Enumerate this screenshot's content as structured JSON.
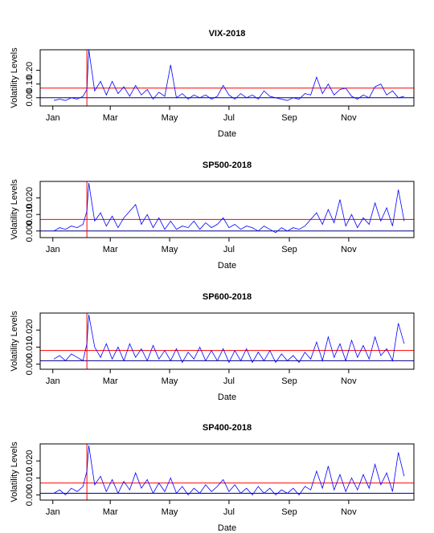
{
  "chart_data": [
    {
      "type": "line",
      "title": "VIX-2018",
      "x_label": "Date",
      "y_label": "Volatility Levels",
      "color": "#0000ff",
      "x": [
        2,
        8,
        14,
        20,
        26,
        32,
        36,
        38,
        44,
        50,
        56,
        62,
        68,
        74,
        80,
        86,
        92,
        98,
        104,
        110,
        116,
        122,
        128,
        134,
        140,
        146,
        152,
        158,
        164,
        170,
        176,
        182,
        188,
        194,
        200,
        206,
        212,
        218,
        224,
        230,
        236,
        242,
        248,
        254,
        260,
        266,
        272,
        278,
        284,
        290,
        296,
        302,
        308,
        314,
        320,
        326,
        332,
        338,
        344,
        350,
        356,
        362
      ],
      "values": [
        -0.02,
        -0.01,
        -0.02,
        0.0,
        -0.01,
        0.01,
        0.06,
        0.35,
        0.05,
        0.12,
        0.02,
        0.12,
        0.03,
        0.08,
        0.01,
        0.09,
        0.02,
        0.06,
        -0.01,
        0.04,
        0.01,
        0.24,
        0.0,
        0.03,
        -0.01,
        0.02,
        0.0,
        0.02,
        -0.01,
        0.01,
        0.09,
        0.02,
        -0.01,
        0.03,
        0.0,
        0.02,
        -0.01,
        0.05,
        0.01,
        0.0,
        -0.01,
        -0.02,
        0.0,
        -0.01,
        0.03,
        0.02,
        0.15,
        0.03,
        0.1,
        0.02,
        0.06,
        0.07,
        0.01,
        -0.01,
        0.02,
        0.0,
        0.08,
        0.1,
        0.02,
        0.05,
        0.0,
        0.01
      ],
      "xlim": [
        -12,
        372
      ],
      "ylim": [
        -0.06,
        0.35
      ],
      "xticks": [
        {
          "value": 1,
          "label": "Jan"
        },
        {
          "value": 60,
          "label": "Mar"
        },
        {
          "value": 121,
          "label": "May"
        },
        {
          "value": 182,
          "label": "Jul"
        },
        {
          "value": 244,
          "label": "Sep"
        },
        {
          "value": 305,
          "label": "Nov"
        }
      ],
      "yticks": [
        {
          "value": 0,
          "label": "0.00"
        },
        {
          "value": 0.1,
          "label": "0.10"
        },
        {
          "value": 0.2,
          "label": "0.20"
        }
      ],
      "hlines": [
        {
          "value": 0.07,
          "color": "#ff0000"
        },
        {
          "value": 0.0,
          "color": "#00008b"
        }
      ],
      "vlines": [
        {
          "value": 36,
          "color": "#ff0000"
        }
      ]
    },
    {
      "type": "line",
      "title": "SP500-2018",
      "x_label": "Date",
      "y_label": "Volatility Levels",
      "color": "#0000ff",
      "x": [
        2,
        8,
        14,
        20,
        26,
        32,
        36,
        38,
        44,
        50,
        56,
        62,
        68,
        74,
        80,
        86,
        92,
        98,
        104,
        110,
        116,
        122,
        128,
        134,
        140,
        146,
        152,
        158,
        164,
        170,
        176,
        182,
        188,
        194,
        200,
        206,
        212,
        218,
        224,
        230,
        236,
        242,
        248,
        254,
        260,
        266,
        272,
        278,
        284,
        290,
        296,
        302,
        308,
        314,
        320,
        326,
        332,
        338,
        344,
        350,
        356,
        362
      ],
      "values": [
        0.0,
        0.002,
        0.001,
        0.003,
        0.002,
        0.004,
        0.012,
        0.029,
        0.006,
        0.011,
        0.003,
        0.009,
        0.002,
        0.008,
        0.012,
        0.016,
        0.004,
        0.01,
        0.002,
        0.008,
        0.001,
        0.006,
        0.001,
        0.003,
        0.002,
        0.006,
        0.001,
        0.005,
        0.002,
        0.004,
        0.008,
        0.002,
        0.004,
        0.001,
        0.003,
        0.002,
        0.0,
        0.003,
        0.001,
        -0.001,
        0.002,
        0.0,
        0.002,
        0.001,
        0.003,
        0.007,
        0.011,
        0.004,
        0.013,
        0.005,
        0.019,
        0.003,
        0.01,
        0.002,
        0.008,
        0.004,
        0.017,
        0.006,
        0.014,
        0.003,
        0.025,
        0.006
      ],
      "xlim": [
        -12,
        372
      ],
      "ylim": [
        -0.004,
        0.03
      ],
      "xticks": [
        {
          "value": 1,
          "label": "Jan"
        },
        {
          "value": 60,
          "label": "Mar"
        },
        {
          "value": 121,
          "label": "May"
        },
        {
          "value": 182,
          "label": "Jul"
        },
        {
          "value": 244,
          "label": "Sep"
        },
        {
          "value": 305,
          "label": "Nov"
        }
      ],
      "yticks": [
        {
          "value": 0,
          "label": "0.000"
        },
        {
          "value": 0.01,
          "label": "0.010"
        },
        {
          "value": 0.02,
          "label": "0.020"
        }
      ],
      "hlines": [
        {
          "value": 0.007,
          "color": "#ff0000"
        },
        {
          "value": 0.0,
          "color": "#00008b"
        }
      ],
      "vlines": [
        {
          "value": 36,
          "color": "#ff0000"
        }
      ]
    },
    {
      "type": "line",
      "title": "SP600-2018",
      "x_label": "Date",
      "y_label": "Volatility Levels",
      "color": "#0000ff",
      "x": [
        2,
        8,
        14,
        20,
        26,
        32,
        36,
        38,
        44,
        50,
        56,
        62,
        68,
        74,
        80,
        86,
        92,
        98,
        104,
        110,
        116,
        122,
        128,
        134,
        140,
        146,
        152,
        158,
        164,
        170,
        176,
        182,
        188,
        194,
        200,
        206,
        212,
        218,
        224,
        230,
        236,
        242,
        248,
        254,
        260,
        266,
        272,
        278,
        284,
        290,
        296,
        302,
        308,
        314,
        320,
        326,
        332,
        338,
        344,
        350,
        356,
        362
      ],
      "values": [
        0.003,
        0.005,
        0.002,
        0.006,
        0.004,
        0.002,
        0.012,
        0.029,
        0.01,
        0.004,
        0.012,
        0.003,
        0.01,
        0.002,
        0.012,
        0.004,
        0.009,
        0.002,
        0.011,
        0.003,
        0.008,
        0.002,
        0.009,
        0.001,
        0.007,
        0.003,
        0.01,
        0.002,
        0.008,
        0.002,
        0.009,
        0.001,
        0.008,
        0.002,
        0.009,
        0.001,
        0.007,
        0.002,
        0.008,
        0.001,
        0.006,
        0.002,
        0.005,
        0.001,
        0.007,
        0.003,
        0.013,
        0.002,
        0.016,
        0.004,
        0.012,
        0.002,
        0.014,
        0.004,
        0.011,
        0.003,
        0.016,
        0.005,
        0.009,
        0.002,
        0.024,
        0.012
      ],
      "xlim": [
        -12,
        372
      ],
      "ylim": [
        -0.003,
        0.03
      ],
      "xticks": [
        {
          "value": 1,
          "label": "Jan"
        },
        {
          "value": 60,
          "label": "Mar"
        },
        {
          "value": 121,
          "label": "May"
        },
        {
          "value": 182,
          "label": "Jul"
        },
        {
          "value": 244,
          "label": "Sep"
        },
        {
          "value": 305,
          "label": "Nov"
        }
      ],
      "yticks": [
        {
          "value": 0,
          "label": "0.000"
        },
        {
          "value": 0.01,
          "label": "0.010"
        },
        {
          "value": 0.02,
          "label": "0.020"
        }
      ],
      "hlines": [
        {
          "value": 0.008,
          "color": "#ff0000"
        },
        {
          "value": 0.002,
          "color": "#00008b"
        }
      ],
      "vlines": [
        {
          "value": 36,
          "color": "#ff0000"
        }
      ]
    },
    {
      "type": "line",
      "title": "SP400-2018",
      "x_label": "Date",
      "y_label": "Volatility Levels",
      "color": "#0000ff",
      "x": [
        2,
        8,
        14,
        20,
        26,
        32,
        36,
        38,
        44,
        50,
        56,
        62,
        68,
        74,
        80,
        86,
        92,
        98,
        104,
        110,
        116,
        122,
        128,
        134,
        140,
        146,
        152,
        158,
        164,
        170,
        176,
        182,
        188,
        194,
        200,
        206,
        212,
        218,
        224,
        230,
        236,
        242,
        248,
        254,
        260,
        266,
        272,
        278,
        284,
        290,
        296,
        302,
        308,
        314,
        320,
        326,
        332,
        338,
        344,
        350,
        356,
        362
      ],
      "values": [
        0.001,
        0.003,
        0.0,
        0.004,
        0.002,
        0.005,
        0.014,
        0.029,
        0.006,
        0.011,
        0.002,
        0.009,
        0.001,
        0.008,
        0.003,
        0.013,
        0.004,
        0.009,
        0.001,
        0.007,
        0.002,
        0.01,
        0.001,
        0.005,
        0.0,
        0.004,
        0.001,
        0.006,
        0.002,
        0.005,
        0.009,
        0.002,
        0.006,
        0.001,
        0.004,
        0.0,
        0.005,
        0.001,
        0.004,
        0.0,
        0.003,
        0.001,
        0.004,
        0.0,
        0.005,
        0.003,
        0.014,
        0.004,
        0.017,
        0.003,
        0.012,
        0.002,
        0.01,
        0.003,
        0.012,
        0.004,
        0.018,
        0.006,
        0.013,
        0.002,
        0.025,
        0.011
      ],
      "xlim": [
        -12,
        372
      ],
      "ylim": [
        -0.003,
        0.03
      ],
      "xticks": [
        {
          "value": 1,
          "label": "Jan"
        },
        {
          "value": 60,
          "label": "Mar"
        },
        {
          "value": 121,
          "label": "May"
        },
        {
          "value": 182,
          "label": "Jul"
        },
        {
          "value": 244,
          "label": "Sep"
        },
        {
          "value": 305,
          "label": "Nov"
        }
      ],
      "yticks": [
        {
          "value": 0,
          "label": "0.000"
        },
        {
          "value": 0.01,
          "label": "0.010"
        },
        {
          "value": 0.02,
          "label": "0.020"
        }
      ],
      "hlines": [
        {
          "value": 0.007,
          "color": "#ff0000"
        },
        {
          "value": 0.001,
          "color": "#00008b"
        }
      ],
      "vlines": [
        {
          "value": 36,
          "color": "#ff0000"
        }
      ]
    }
  ]
}
